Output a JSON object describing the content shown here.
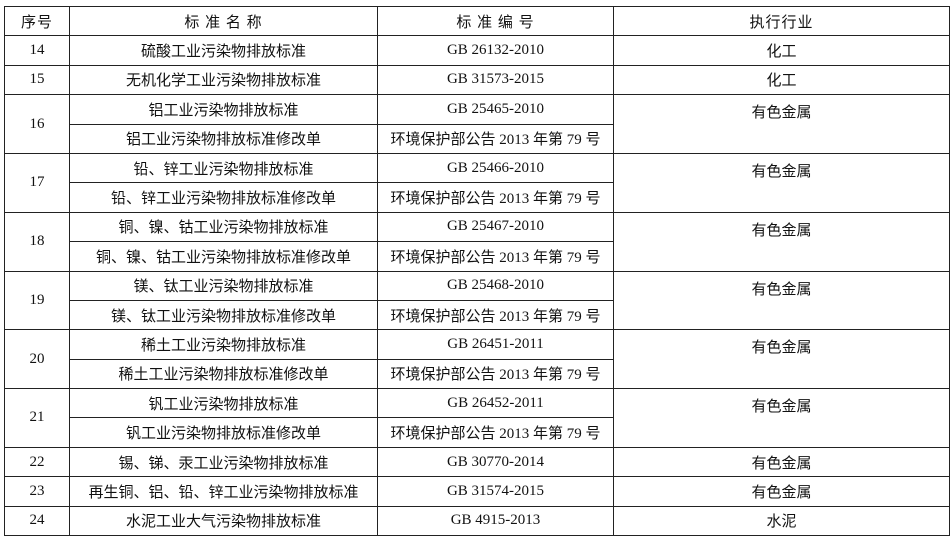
{
  "headers": {
    "no": "序号",
    "name": "标 准 名 称",
    "code": "标 准 编 号",
    "industry": "执行行业"
  },
  "rows": [
    {
      "no": "14",
      "items": [
        {
          "name": "硫酸工业污染物排放标准",
          "code": "GB 26132-2010"
        }
      ],
      "industry": "化工"
    },
    {
      "no": "15",
      "items": [
        {
          "name": "无机化学工业污染物排放标准",
          "code": "GB 31573-2015"
        }
      ],
      "industry": "化工"
    },
    {
      "no": "16",
      "items": [
        {
          "name": "铝工业污染物排放标准",
          "code": "GB 25465-2010"
        },
        {
          "name": "铝工业污染物排放标准修改单",
          "code": "环境保护部公告 2013 年第 79 号"
        }
      ],
      "industry": "有色金属"
    },
    {
      "no": "17",
      "items": [
        {
          "name": "铅、锌工业污染物排放标准",
          "code": "GB 25466-2010"
        },
        {
          "name": "铅、锌工业污染物排放标准修改单",
          "code": "环境保护部公告 2013 年第 79 号"
        }
      ],
      "industry": "有色金属"
    },
    {
      "no": "18",
      "items": [
        {
          "name": "铜、镍、钴工业污染物排放标准",
          "code": "GB 25467-2010"
        },
        {
          "name": "铜、镍、钴工业污染物排放标准修改单",
          "code": "环境保护部公告 2013 年第 79 号"
        }
      ],
      "industry": "有色金属"
    },
    {
      "no": "19",
      "items": [
        {
          "name": "镁、钛工业污染物排放标准",
          "code": "GB 25468-2010"
        },
        {
          "name": "镁、钛工业污染物排放标准修改单",
          "code": "环境保护部公告 2013 年第 79 号"
        }
      ],
      "industry": "有色金属"
    },
    {
      "no": "20",
      "items": [
        {
          "name": "稀土工业污染物排放标准",
          "code": "GB 26451-2011"
        },
        {
          "name": "稀土工业污染物排放标准修改单",
          "code": "环境保护部公告 2013 年第 79 号"
        }
      ],
      "industry": "有色金属"
    },
    {
      "no": "21",
      "items": [
        {
          "name": "钒工业污染物排放标准",
          "code": "GB 26452-2011"
        },
        {
          "name": "钒工业污染物排放标准修改单",
          "code": "环境保护部公告 2013 年第 79 号"
        }
      ],
      "industry": "有色金属"
    },
    {
      "no": "22",
      "items": [
        {
          "name": "锡、锑、汞工业污染物排放标准",
          "code": "GB 30770-2014"
        }
      ],
      "industry": "有色金属"
    },
    {
      "no": "23",
      "items": [
        {
          "name": "再生铜、铝、铅、锌工业污染物排放标准",
          "code": "GB 31574-2015"
        }
      ],
      "industry": "有色金属"
    },
    {
      "no": "24",
      "items": [
        {
          "name": "水泥工业大气污染物排放标准",
          "code": "GB 4915-2013"
        }
      ],
      "industry": "水泥"
    }
  ]
}
